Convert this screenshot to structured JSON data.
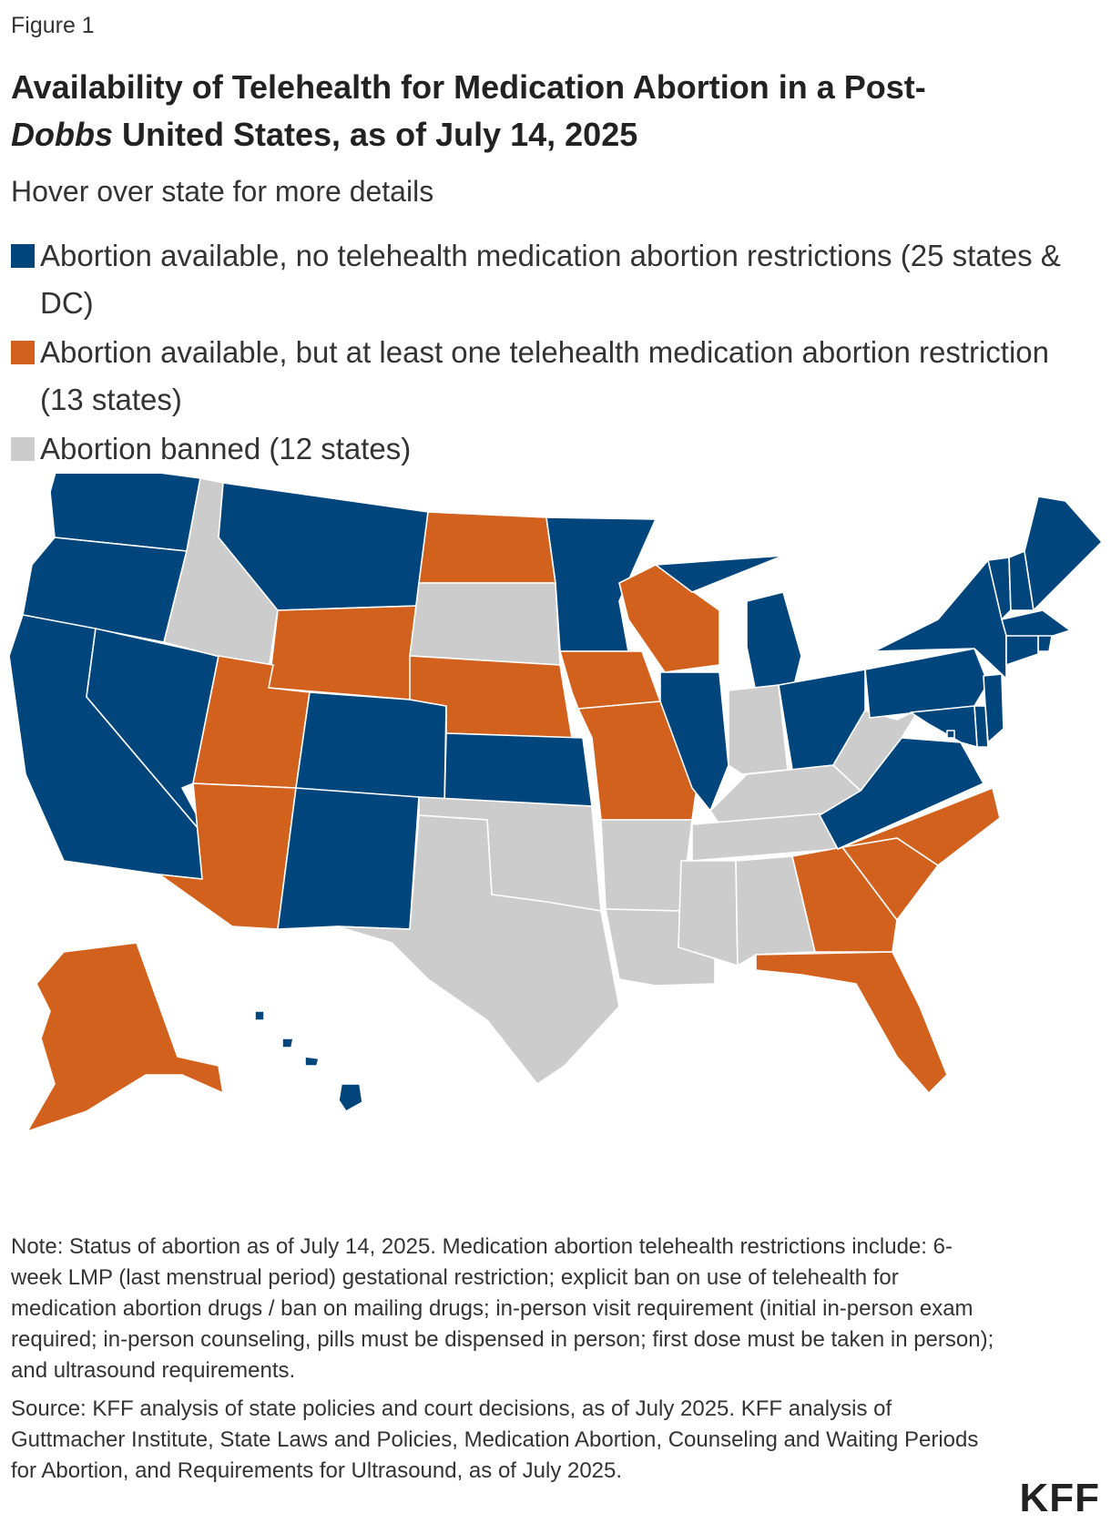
{
  "figure_label": "Figure 1",
  "title_part1": "Availability of Telehealth for Medication Abortion in a Post-",
  "title_italic": "Dobbs",
  "title_part2": " United States, as of July 14, 2025",
  "subtitle": "Hover over state for more details",
  "colors": {
    "no_restrictions": "#00457c",
    "restrictions": "#d1611d",
    "banned": "#cccccc"
  },
  "legend": [
    {
      "key": "no_restrictions",
      "label": "Abortion available, no telehealth medication abortion restrictions (25 states & DC)"
    },
    {
      "key": "restrictions",
      "label": "Abortion available, but at least one telehealth medication abortion restriction (13 states)"
    },
    {
      "key": "banned",
      "label": "Abortion banned (12 states)"
    }
  ],
  "states": {
    "WA": "no_restrictions",
    "OR": "no_restrictions",
    "CA": "no_restrictions",
    "NV": "no_restrictions",
    "ID": "banned",
    "MT": "no_restrictions",
    "WY": "restrictions",
    "UT": "restrictions",
    "AZ": "restrictions",
    "CO": "no_restrictions",
    "NM": "no_restrictions",
    "ND": "restrictions",
    "SD": "banned",
    "NE": "restrictions",
    "KS": "no_restrictions",
    "OK": "banned",
    "TX": "banned",
    "MN": "no_restrictions",
    "IA": "restrictions",
    "MO": "restrictions",
    "AR": "banned",
    "LA": "banned",
    "WI": "restrictions",
    "IL": "no_restrictions",
    "MI": "no_restrictions",
    "IN": "banned",
    "OH": "no_restrictions",
    "KY": "banned",
    "TN": "banned",
    "MS": "banned",
    "AL": "banned",
    "GA": "restrictions",
    "FL": "restrictions",
    "SC": "restrictions",
    "NC": "restrictions",
    "VA": "no_restrictions",
    "WV": "banned",
    "PA": "no_restrictions",
    "NY": "no_restrictions",
    "VT": "no_restrictions",
    "NH": "no_restrictions",
    "ME": "no_restrictions",
    "MA": "no_restrictions",
    "RI": "no_restrictions",
    "CT": "no_restrictions",
    "NJ": "no_restrictions",
    "DE": "no_restrictions",
    "MD": "no_restrictions",
    "DC": "no_restrictions",
    "AK": "restrictions",
    "HI": "no_restrictions"
  },
  "note": "Note: Status of abortion as of July 14, 2025. Medication abortion telehealth restrictions include: 6-week LMP (last menstrual period) gestational restriction; explicit ban on use of telehealth for medication abortion drugs / ban on mailing drugs; in-person visit requirement (initial in-person exam required; in-person counseling, pills must be dispensed in person; first dose must be taken in person); and ultrasound requirements.",
  "source": "Source: KFF analysis of state policies and court decisions, as of July 2025. KFF analysis of Guttmacher Institute, State Laws and Policies, Medication Abortion, Counseling and Waiting Periods for Abortion, and Requirements for Ultrasound, as of July 2025.",
  "logo": "KFF"
}
